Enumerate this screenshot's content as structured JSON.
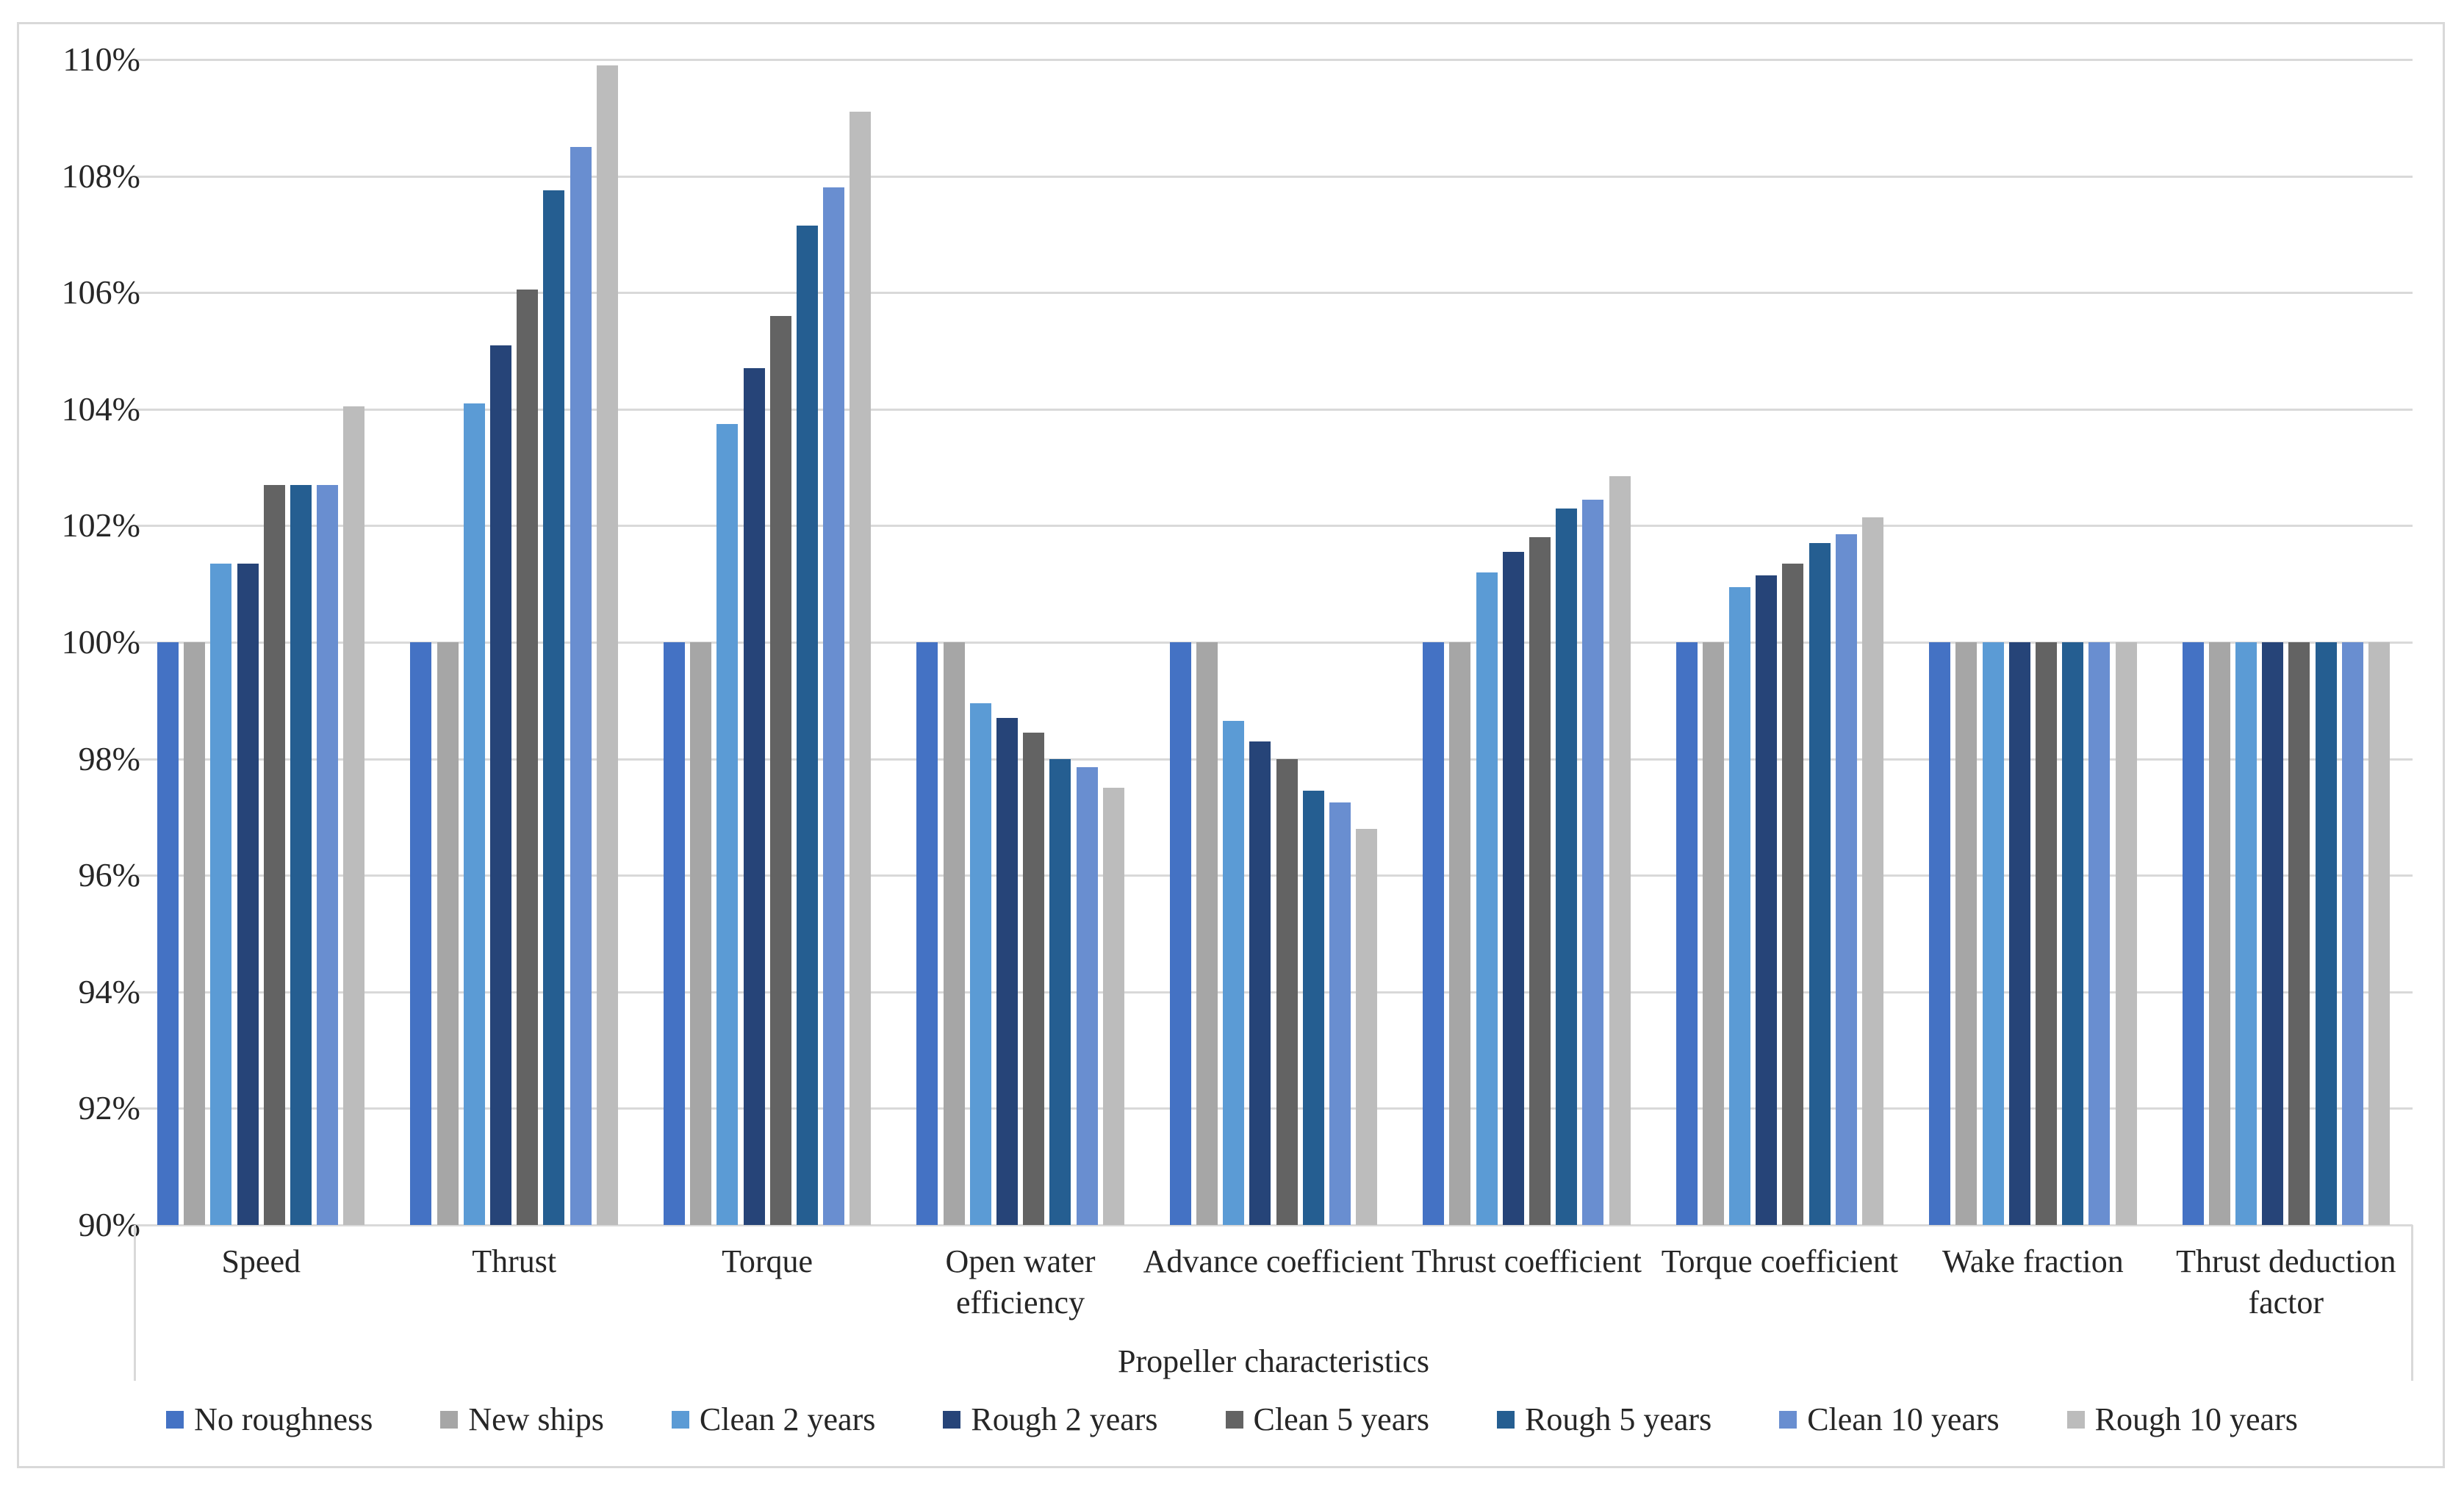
{
  "chart_data": {
    "type": "bar",
    "xlabel": "Propeller characteristics",
    "ylabel": "",
    "y_axis": {
      "min": 90,
      "max": 110,
      "step": 2,
      "tick_labels": [
        "90%",
        "92%",
        "94%",
        "96%",
        "98%",
        "100%",
        "102%",
        "104%",
        "106%",
        "108%",
        "110%"
      ]
    },
    "grid": true,
    "legend_position": "bottom",
    "gridline_color": "#D9D9D9",
    "categories": [
      "Speed",
      "Thrust",
      "Torque",
      "Open water\nefficiency",
      "Advance coefficient",
      "Thrust coefficient",
      "Torque coefficient",
      "Wake fraction",
      "Thrust deduction\nfactor"
    ],
    "series": [
      {
        "name": "No roughness",
        "color": "#4472C4",
        "values": [
          100,
          100,
          100,
          100,
          100,
          100,
          100,
          100,
          100
        ]
      },
      {
        "name": "New ships",
        "color": "#A6A6A6",
        "values": [
          100,
          100,
          100,
          100,
          100,
          100,
          100,
          100,
          100
        ]
      },
      {
        "name": "Clean 2 years",
        "color": "#5B9BD5",
        "values": [
          101.35,
          104.1,
          103.75,
          98.95,
          98.65,
          101.2,
          100.95,
          100,
          100
        ]
      },
      {
        "name": "Rough 2 years",
        "color": "#264478",
        "values": [
          101.35,
          105.1,
          104.7,
          98.7,
          98.3,
          101.55,
          101.15,
          100,
          100
        ]
      },
      {
        "name": "Clean 5 years",
        "color": "#636363",
        "values": [
          102.7,
          106.05,
          105.6,
          98.45,
          98.0,
          101.8,
          101.35,
          100,
          100
        ]
      },
      {
        "name": "Rough 5 years",
        "color": "#255E91",
        "values": [
          102.7,
          107.75,
          107.15,
          98.0,
          97.45,
          102.3,
          101.7,
          100,
          100
        ]
      },
      {
        "name": "Clean 10 years",
        "color": "#698ED0",
        "values": [
          102.7,
          108.5,
          107.8,
          97.85,
          97.25,
          102.45,
          101.85,
          100,
          100
        ]
      },
      {
        "name": "Rough 10 years",
        "color": "#BCBCBC",
        "values": [
          104.05,
          109.9,
          109.1,
          97.5,
          96.8,
          102.85,
          102.15,
          100,
          100
        ]
      }
    ]
  }
}
